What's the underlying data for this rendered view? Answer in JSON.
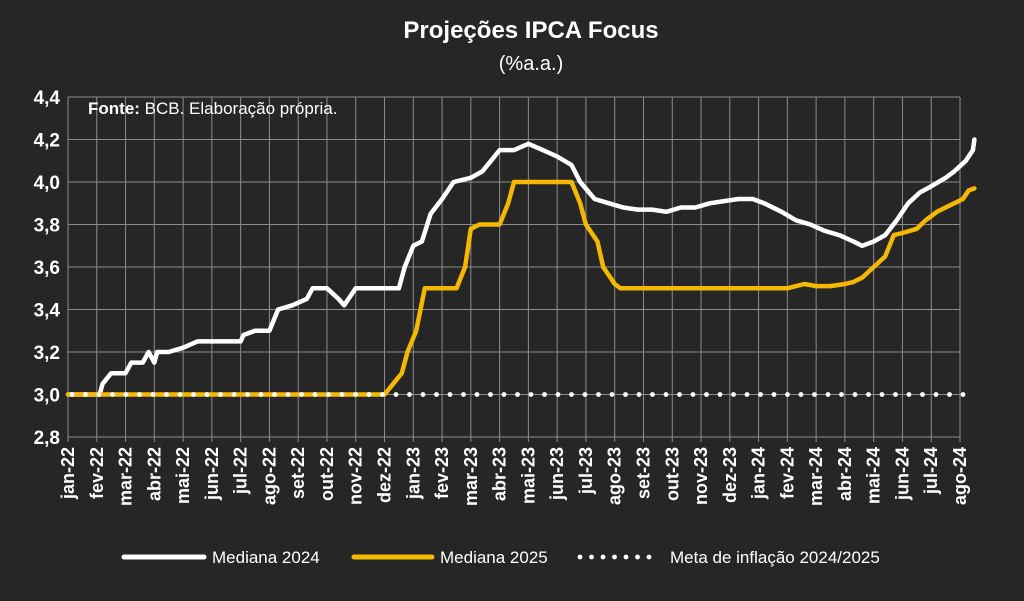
{
  "chart_data": {
    "type": "line",
    "title": "Projeções IPCA Focus",
    "subtitle": "(%a.a.)",
    "source_label": "Fonte:",
    "source_text": " BCB. Elaboração própria.",
    "ylim": [
      2.8,
      4.4
    ],
    "yticks": [
      "2,8",
      "3,0",
      "3,2",
      "3,4",
      "3,6",
      "3,8",
      "4,0",
      "4,2",
      "4,4"
    ],
    "grid": true,
    "legend_position": "bottom",
    "categories": [
      "jan-22",
      "fev-22",
      "mar-22",
      "abr-22",
      "mai-22",
      "jun-22",
      "jul-22",
      "ago-22",
      "set-22",
      "out-22",
      "nov-22",
      "dez-22",
      "jan-23",
      "fev-23",
      "mar-23",
      "abr-23",
      "mai-23",
      "jun-23",
      "jul-23",
      "ago-23",
      "set-23",
      "out-23",
      "nov-23",
      "dez-23",
      "jan-24",
      "fev-24",
      "mar-24",
      "abr-24",
      "mai-24",
      "jun-24",
      "jul-24",
      "ago-24"
    ],
    "series": [
      {
        "name": "Mediana 2024",
        "color": "#ffffff",
        "style": "solid",
        "points": [
          [
            0,
            3.0
          ],
          [
            1.1,
            3.0
          ],
          [
            1.2,
            3.05
          ],
          [
            1.5,
            3.1
          ],
          [
            2.0,
            3.1
          ],
          [
            2.2,
            3.15
          ],
          [
            2.6,
            3.15
          ],
          [
            2.8,
            3.2
          ],
          [
            3.0,
            3.15
          ],
          [
            3.1,
            3.2
          ],
          [
            3.5,
            3.2
          ],
          [
            4.0,
            3.22
          ],
          [
            4.5,
            3.25
          ],
          [
            5.0,
            3.25
          ],
          [
            5.5,
            3.25
          ],
          [
            6.0,
            3.25
          ],
          [
            6.1,
            3.28
          ],
          [
            6.5,
            3.3
          ],
          [
            7.0,
            3.3
          ],
          [
            7.3,
            3.4
          ],
          [
            7.8,
            3.42
          ],
          [
            8.3,
            3.45
          ],
          [
            8.5,
            3.5
          ],
          [
            9.0,
            3.5
          ],
          [
            9.4,
            3.45
          ],
          [
            9.6,
            3.42
          ],
          [
            10.0,
            3.5
          ],
          [
            10.5,
            3.5
          ],
          [
            11.0,
            3.5
          ],
          [
            11.5,
            3.5
          ],
          [
            11.7,
            3.6
          ],
          [
            12.0,
            3.7
          ],
          [
            12.3,
            3.72
          ],
          [
            12.6,
            3.85
          ],
          [
            13.0,
            3.92
          ],
          [
            13.4,
            4.0
          ],
          [
            14.0,
            4.02
          ],
          [
            14.4,
            4.05
          ],
          [
            14.7,
            4.1
          ],
          [
            15.0,
            4.15
          ],
          [
            15.5,
            4.15
          ],
          [
            16.0,
            4.18
          ],
          [
            16.5,
            4.15
          ],
          [
            17.0,
            4.12
          ],
          [
            17.5,
            4.08
          ],
          [
            17.8,
            4.0
          ],
          [
            18.3,
            3.92
          ],
          [
            18.8,
            3.9
          ],
          [
            19.3,
            3.88
          ],
          [
            19.8,
            3.87
          ],
          [
            20.3,
            3.87
          ],
          [
            20.8,
            3.86
          ],
          [
            21.3,
            3.88
          ],
          [
            21.8,
            3.88
          ],
          [
            22.3,
            3.9
          ],
          [
            22.8,
            3.91
          ],
          [
            23.3,
            3.92
          ],
          [
            23.8,
            3.92
          ],
          [
            24.2,
            3.9
          ],
          [
            24.8,
            3.86
          ],
          [
            25.3,
            3.82
          ],
          [
            25.8,
            3.8
          ],
          [
            26.3,
            3.77
          ],
          [
            26.8,
            3.75
          ],
          [
            27.3,
            3.72
          ],
          [
            27.6,
            3.7
          ],
          [
            28.0,
            3.72
          ],
          [
            28.4,
            3.75
          ],
          [
            28.8,
            3.82
          ],
          [
            29.2,
            3.9
          ],
          [
            29.6,
            3.95
          ],
          [
            30.0,
            3.98
          ],
          [
            30.5,
            4.02
          ],
          [
            30.8,
            4.05
          ],
          [
            31.2,
            4.1
          ],
          [
            31.45,
            4.15
          ],
          [
            31.5,
            4.2
          ]
        ]
      },
      {
        "name": "Mediana 2025",
        "color": "#f5b800",
        "style": "solid",
        "points": [
          [
            0,
            3.0
          ],
          [
            11.0,
            3.0
          ],
          [
            11.3,
            3.05
          ],
          [
            11.6,
            3.1
          ],
          [
            11.8,
            3.2
          ],
          [
            12.1,
            3.3
          ],
          [
            12.4,
            3.5
          ],
          [
            13.0,
            3.5
          ],
          [
            13.5,
            3.5
          ],
          [
            13.8,
            3.6
          ],
          [
            14.0,
            3.78
          ],
          [
            14.3,
            3.8
          ],
          [
            15.0,
            3.8
          ],
          [
            15.3,
            3.9
          ],
          [
            15.5,
            4.0
          ],
          [
            16.0,
            4.0
          ],
          [
            16.5,
            4.0
          ],
          [
            17.0,
            4.0
          ],
          [
            17.5,
            4.0
          ],
          [
            17.8,
            3.9
          ],
          [
            18.0,
            3.8
          ],
          [
            18.4,
            3.72
          ],
          [
            18.6,
            3.6
          ],
          [
            19.0,
            3.52
          ],
          [
            19.2,
            3.5
          ],
          [
            20.0,
            3.5
          ],
          [
            21.0,
            3.5
          ],
          [
            22.0,
            3.5
          ],
          [
            23.0,
            3.5
          ],
          [
            24.0,
            3.5
          ],
          [
            25.0,
            3.5
          ],
          [
            25.3,
            3.51
          ],
          [
            25.6,
            3.52
          ],
          [
            26.0,
            3.51
          ],
          [
            26.5,
            3.51
          ],
          [
            27.0,
            3.52
          ],
          [
            27.3,
            3.53
          ],
          [
            27.6,
            3.55
          ],
          [
            28.0,
            3.6
          ],
          [
            28.4,
            3.65
          ],
          [
            28.7,
            3.75
          ],
          [
            29.0,
            3.76
          ],
          [
            29.5,
            3.78
          ],
          [
            29.8,
            3.82
          ],
          [
            30.2,
            3.86
          ],
          [
            30.5,
            3.88
          ],
          [
            30.8,
            3.9
          ],
          [
            31.1,
            3.92
          ],
          [
            31.3,
            3.96
          ],
          [
            31.5,
            3.97
          ]
        ]
      },
      {
        "name": "Meta de inflação 2024/2025",
        "color": "#ffffff",
        "style": "dotted",
        "points": [
          [
            0,
            3.0
          ],
          [
            31.5,
            3.0
          ]
        ]
      }
    ]
  }
}
